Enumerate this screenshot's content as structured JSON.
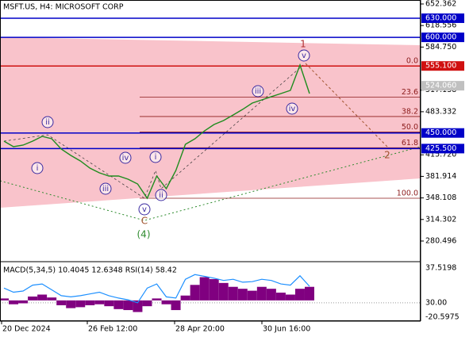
{
  "chart_data": {
    "type": "line",
    "title": "MSFT.US, H4:  MICROSOFT CORP",
    "values": [
      437.2,
      428.5,
      431.0,
      437.2,
      444.7,
      440.9,
      424.7,
      414.8,
      406.1,
      394.9,
      387.4,
      382.5,
      382.5,
      377.5,
      370.0,
      347.6,
      382.5,
      362.6,
      391.2,
      432.2,
      440.9,
      453.4,
      463.3,
      469.5,
      478.2,
      487.0,
      496.9,
      501.9,
      506.9,
      511.8,
      516.8,
      556.6,
      511.8
    ],
    "color": "#1e8c1e",
    "ylim": [
      250.6,
      658.58
    ],
    "yticks": [
      652.362,
      618.556,
      {
        "value": 584.75,
        "label": "584.750"
      },
      517.138,
      483.332,
      {
        "value": 415.72,
        "label": "415.720"
      },
      381.914,
      348.108,
      314.302,
      280.496
    ],
    "levels": [
      {
        "price": {
          "value": 630,
          "label": "630.000"
        },
        "color": "#0000c8",
        "line": true
      },
      {
        "price": {
          "value": 600,
          "label": "600.000"
        },
        "color": "#0000c8",
        "line": true
      },
      {
        "price": {
          "value": 555.1,
          "label": "555.100"
        },
        "color": "#d01010",
        "line": true
      },
      {
        "price": {
          "value": 524.06,
          "label": "524.060"
        },
        "color": "#c0c0c0",
        "line": false
      },
      {
        "price": {
          "value": 450,
          "label": "450.000"
        },
        "color": "#0000c8",
        "line": true
      },
      {
        "price": {
          "value": 425.5,
          "label": "425.500"
        },
        "color": "#0000c8",
        "line": true
      }
    ],
    "fib": {
      "color": "#8b1a1a",
      "levels": [
        {
          "ratio": {
            "value": 0,
            "label": "0.0"
          },
          "price": 555.1
        },
        {
          "ratio": 23.6,
          "price": 506.1
        },
        {
          "ratio": 38.2,
          "price": 475.8
        },
        {
          "ratio": {
            "value": 50,
            "label": "50.0"
          },
          "price": 451.4
        },
        {
          "ratio": 61.8,
          "price": 426.9
        },
        {
          "ratio": {
            "value": 100,
            "label": "100.0"
          },
          "price": 347.6
        }
      ]
    },
    "waves": [
      {
        "text": "1",
        "color": "#b03030",
        "circle": false
      },
      {
        "text": "v",
        "color": "#3a2aa0",
        "circle": true
      },
      {
        "text": "iii",
        "color": "#3a2aa0",
        "circle": true
      },
      {
        "text": "iv",
        "color": "#3a2aa0",
        "circle": true
      },
      {
        "text": "ii",
        "color": "#3a2aa0",
        "circle": true
      },
      {
        "text": "i",
        "color": "#3a2aa0",
        "circle": true
      },
      {
        "text": "iv",
        "color": "#3a2aa0",
        "circle": true
      },
      {
        "text": "iii",
        "color": "#3a2aa0",
        "circle": true
      },
      {
        "text": "v",
        "color": "#3a2aa0",
        "circle": true
      },
      {
        "text": "i",
        "color": "#3a2aa0",
        "circle": true
      },
      {
        "text": "ii",
        "color": "#3a2aa0",
        "circle": true
      },
      {
        "text": "C",
        "color": "#a0522d",
        "circle": false
      },
      {
        "text": "(4)",
        "color": "#2e8b2e",
        "circle": false
      },
      {
        "text": "2",
        "color": "#a0522d",
        "circle": false
      }
    ],
    "indicator": {
      "label": "MACD(5,34,5) 10.4045 12.6348 RSI(14) 58.42",
      "macd_ylim": [
        -20.5975,
        37.5198
      ],
      "histogram": [
        2,
        -4,
        -3,
        4,
        6,
        3,
        -5,
        -8,
        -7,
        -5,
        -4,
        -6,
        -9,
        -10,
        -12,
        -6,
        2,
        -4,
        -10,
        5,
        16,
        24,
        22,
        18,
        14,
        12,
        10,
        14,
        12,
        8,
        6,
        12,
        14
      ],
      "histogram_color": "#800080",
      "rsi": [
        55,
        48,
        50,
        60,
        62,
        52,
        42,
        40,
        42,
        45,
        48,
        42,
        38,
        35,
        30,
        55,
        62,
        40,
        38,
        70,
        78,
        75,
        72,
        68,
        70,
        65,
        66,
        70,
        68,
        62,
        60,
        76,
        58
      ],
      "rsi_color": "#1e90ff",
      "rsi_ylim": [
        0,
        96
      ],
      "rsi_ticks": [
        {
          "value": 30,
          "label": "30.00"
        }
      ]
    },
    "xlabels": [
      "20 Dec 2024",
      "26 Feb 12:00",
      "28 Apr 20:00",
      "30 Jun 16:00"
    ]
  }
}
